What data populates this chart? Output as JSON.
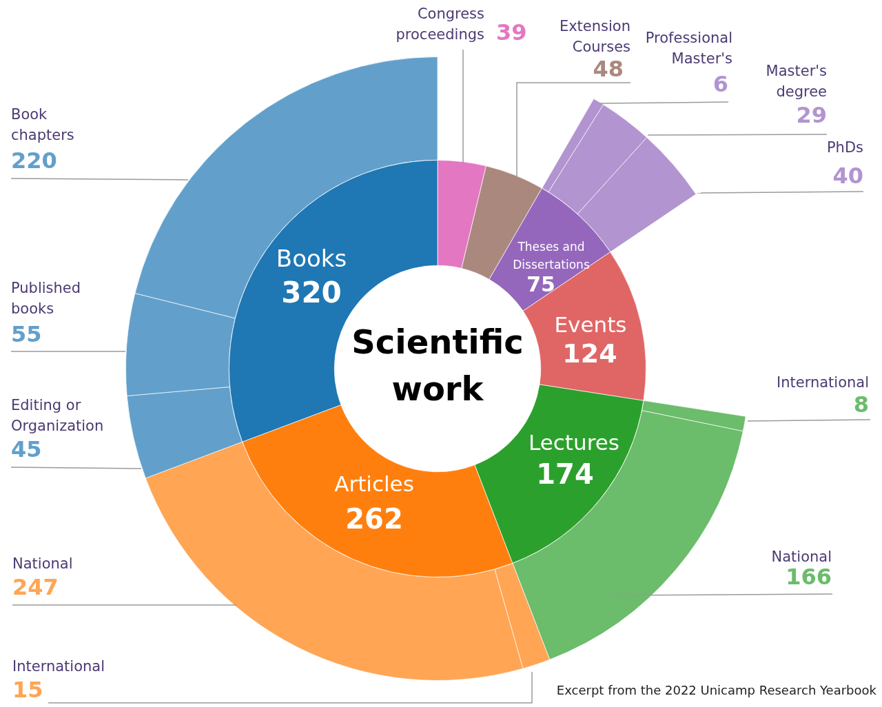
{
  "chart_data": [
    {
      "type": "donut",
      "title": "Scientific work",
      "categories": [
        "Congress proceedings",
        "Extension Courses",
        "Theses and Dissertations",
        "Events",
        "Lectures",
        "Articles",
        "Books"
      ],
      "values": [
        39,
        48,
        75,
        124,
        174,
        262,
        320
      ],
      "colors": [
        "#e377c2",
        "#ab887e",
        "#9467bd",
        "#e06666",
        "#2ca02c",
        "#ff7f0e",
        "#1f77b4"
      ],
      "data_labels": true,
      "annotations": [
        "Excerpt from the 2022 Unicamp Research Yearbook"
      ]
    },
    {
      "type": "donut",
      "categories": [
        "Professional Master's",
        "Master's degree",
        "PhDs",
        "International",
        "National",
        "International",
        "National",
        "Editing or Organization",
        "Published books",
        "Book chapters"
      ],
      "values": [
        6,
        29,
        40,
        8,
        166,
        15,
        247,
        45,
        55,
        220
      ],
      "colors": [
        "#b294d0",
        "#b294d0",
        "#b294d0",
        "#6bbc6b",
        "#6bbc6b",
        "#ffa554",
        "#ffa554",
        "#62a0cb",
        "#62a0cb",
        "#62a0cb"
      ],
      "data_labels": true
    }
  ]
}
